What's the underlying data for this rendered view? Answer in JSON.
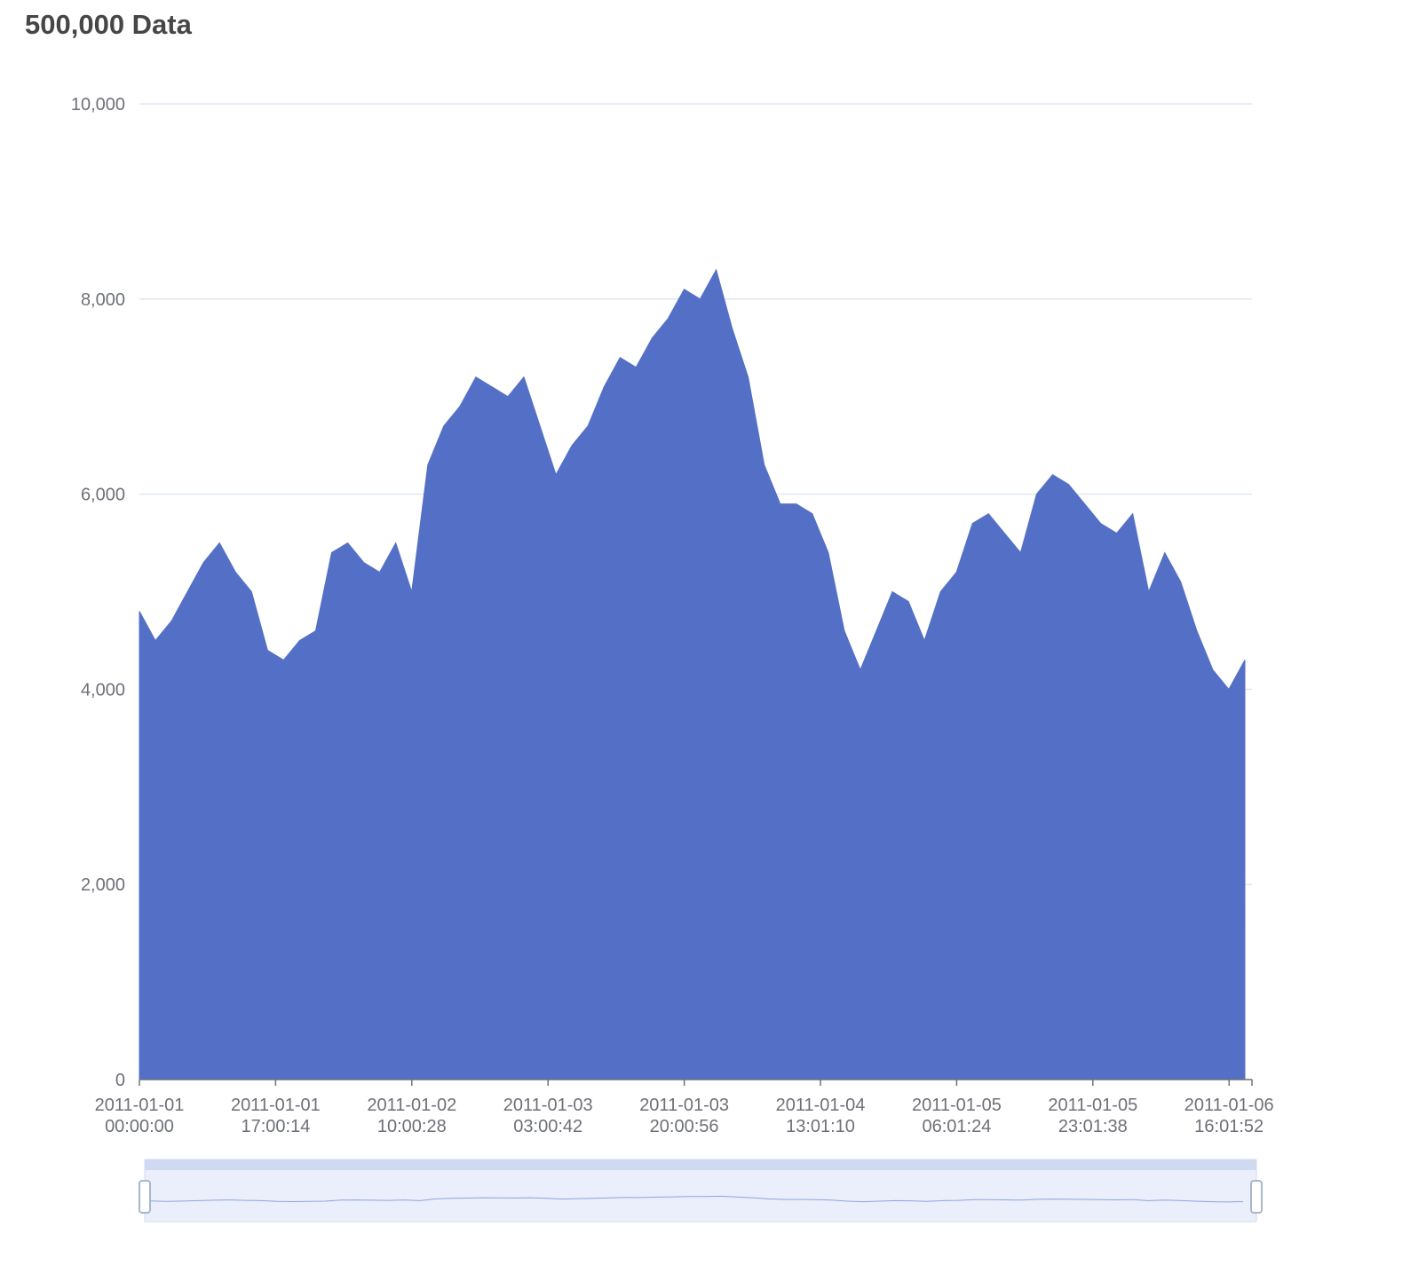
{
  "chart_data": {
    "type": "area",
    "title": "500,000 Data",
    "color": "#5470c6",
    "grid": true,
    "xlim": [
      "2011-01-01 00:00:00",
      "2011-01-06 18:53:19"
    ],
    "xticks": [
      "2011-01-01 00:00:00",
      "2011-01-01 17:00:14",
      "2011-01-02 10:00:28",
      "2011-01-03 03:00:42",
      "2011-01-03 20:00:56",
      "2011-01-04 13:01:10",
      "2011-01-05 06:01:24",
      "2011-01-05 23:01:38",
      "2011-01-06 16:01:52"
    ],
    "ylim": [
      0,
      10000
    ],
    "yticks": [
      0,
      {
        "value": 2000,
        "label": "2,000"
      },
      {
        "value": 4000,
        "label": "4,000"
      },
      {
        "value": 6000,
        "label": "6,000"
      },
      {
        "value": 8000,
        "label": "8,000"
      },
      {
        "value": 10000,
        "label": "10,000"
      }
    ],
    "x": [
      "2011-01-01 00:00:00",
      "2011-01-01 02:00:00",
      "2011-01-01 04:00:00",
      "2011-01-01 06:00:00",
      "2011-01-01 08:00:00",
      "2011-01-01 10:00:00",
      "2011-01-01 12:00:00",
      "2011-01-01 14:00:00",
      "2011-01-01 16:00:00",
      "2011-01-01 18:00:00",
      "2011-01-01 20:00:00",
      "2011-01-01 22:00:00",
      "2011-01-02 00:00:00",
      "2011-01-02 02:00:00",
      "2011-01-02 04:00:00",
      "2011-01-02 06:00:00",
      "2011-01-02 08:00:00",
      "2011-01-02 10:00:00",
      "2011-01-02 12:00:00",
      "2011-01-02 14:00:00",
      "2011-01-02 16:00:00",
      "2011-01-02 18:00:00",
      "2011-01-02 20:00:00",
      "2011-01-02 22:00:00",
      "2011-01-03 00:00:00",
      "2011-01-03 02:00:00",
      "2011-01-03 04:00:00",
      "2011-01-03 06:00:00",
      "2011-01-03 08:00:00",
      "2011-01-03 10:00:00",
      "2011-01-03 12:00:00",
      "2011-01-03 14:00:00",
      "2011-01-03 16:00:00",
      "2011-01-03 18:00:00",
      "2011-01-03 20:00:00",
      "2011-01-03 22:00:00",
      "2011-01-04 00:00:00",
      "2011-01-04 02:00:00",
      "2011-01-04 04:00:00",
      "2011-01-04 06:00:00",
      "2011-01-04 08:00:00",
      "2011-01-04 10:00:00",
      "2011-01-04 12:00:00",
      "2011-01-04 14:00:00",
      "2011-01-04 16:00:00",
      "2011-01-04 18:00:00",
      "2011-01-04 20:00:00",
      "2011-01-04 22:00:00",
      "2011-01-05 00:00:00",
      "2011-01-05 02:00:00",
      "2011-01-05 04:00:00",
      "2011-01-05 06:00:00",
      "2011-01-05 08:00:00",
      "2011-01-05 10:00:00",
      "2011-01-05 12:00:00",
      "2011-01-05 14:00:00",
      "2011-01-05 16:00:00",
      "2011-01-05 18:00:00",
      "2011-01-05 20:00:00",
      "2011-01-05 22:00:00",
      "2011-01-06 00:00:00",
      "2011-01-06 02:00:00",
      "2011-01-06 04:00:00",
      "2011-01-06 06:00:00",
      "2011-01-06 08:00:00",
      "2011-01-06 10:00:00",
      "2011-01-06 12:00:00",
      "2011-01-06 14:00:00",
      "2011-01-06 16:00:00",
      "2011-01-06 18:00:00"
    ],
    "values": [
      4800,
      4500,
      4700,
      5000,
      5300,
      5500,
      5200,
      5000,
      4400,
      4300,
      4500,
      4600,
      5400,
      5500,
      5300,
      5200,
      5500,
      5000,
      6300,
      6700,
      6900,
      7200,
      7100,
      7000,
      7200,
      6700,
      6200,
      6500,
      6700,
      7100,
      7400,
      7300,
      7600,
      7800,
      8100,
      8000,
      8300,
      7700,
      7200,
      6300,
      5900,
      5900,
      5800,
      5400,
      4600,
      4200,
      4600,
      5000,
      4900,
      4500,
      5000,
      5200,
      5700,
      5800,
      5600,
      5400,
      6000,
      6200,
      6100,
      5900,
      5700,
      5600,
      5800,
      5000,
      5400,
      5100,
      4600,
      4200,
      4000,
      4300
    ]
  }
}
